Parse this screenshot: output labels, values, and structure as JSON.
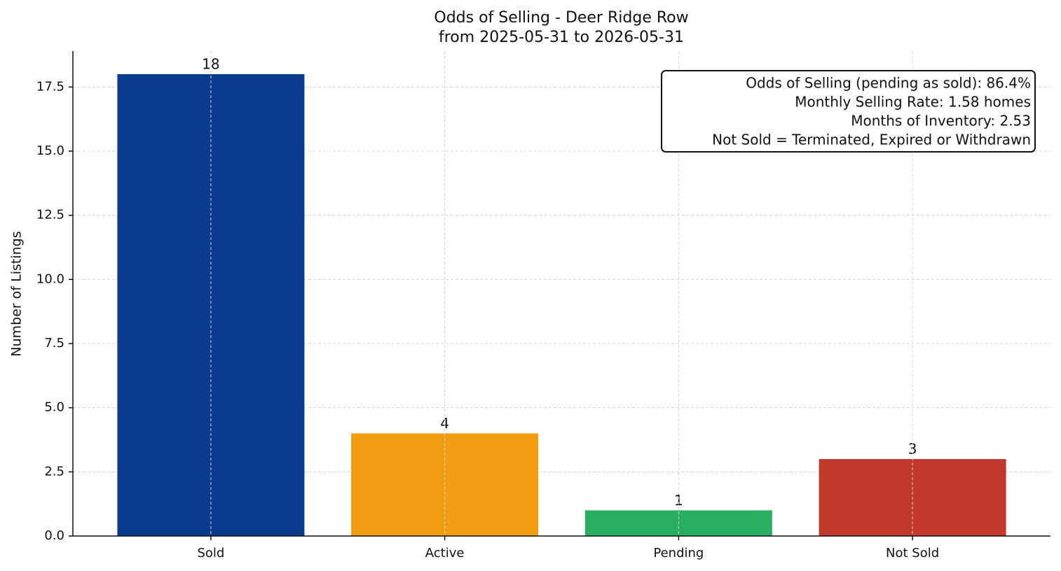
{
  "chart_data": {
    "type": "bar",
    "title": "Odds of Selling - Deer Ridge Row",
    "subtitle": "from 2025-05-31 to 2026-05-31",
    "y_label": "Number of Listings",
    "categories": [
      "Sold",
      "Active",
      "Pending",
      "Not Sold"
    ],
    "values": [
      18,
      4,
      1,
      3
    ],
    "colors": [
      "#0b3b8c",
      "#f39c12",
      "#27ae60",
      "#c0392b"
    ],
    "ylim": [
      0,
      18.9
    ],
    "yticks": [
      {
        "value": 0,
        "label": "0.0"
      },
      2.5,
      {
        "value": 5,
        "label": "5.0"
      },
      7.5,
      {
        "value": 10,
        "label": "10.0"
      },
      12.5,
      {
        "value": 15,
        "label": "15.0"
      },
      17.5
    ],
    "grid": true,
    "annotations": [
      "Odds of Selling (pending as sold): 86.4%",
      "Monthly Selling Rate: 1.58 homes",
      "Months of Inventory: 2.53",
      "Not Sold = Terminated, Expired or Withdrawn"
    ]
  }
}
